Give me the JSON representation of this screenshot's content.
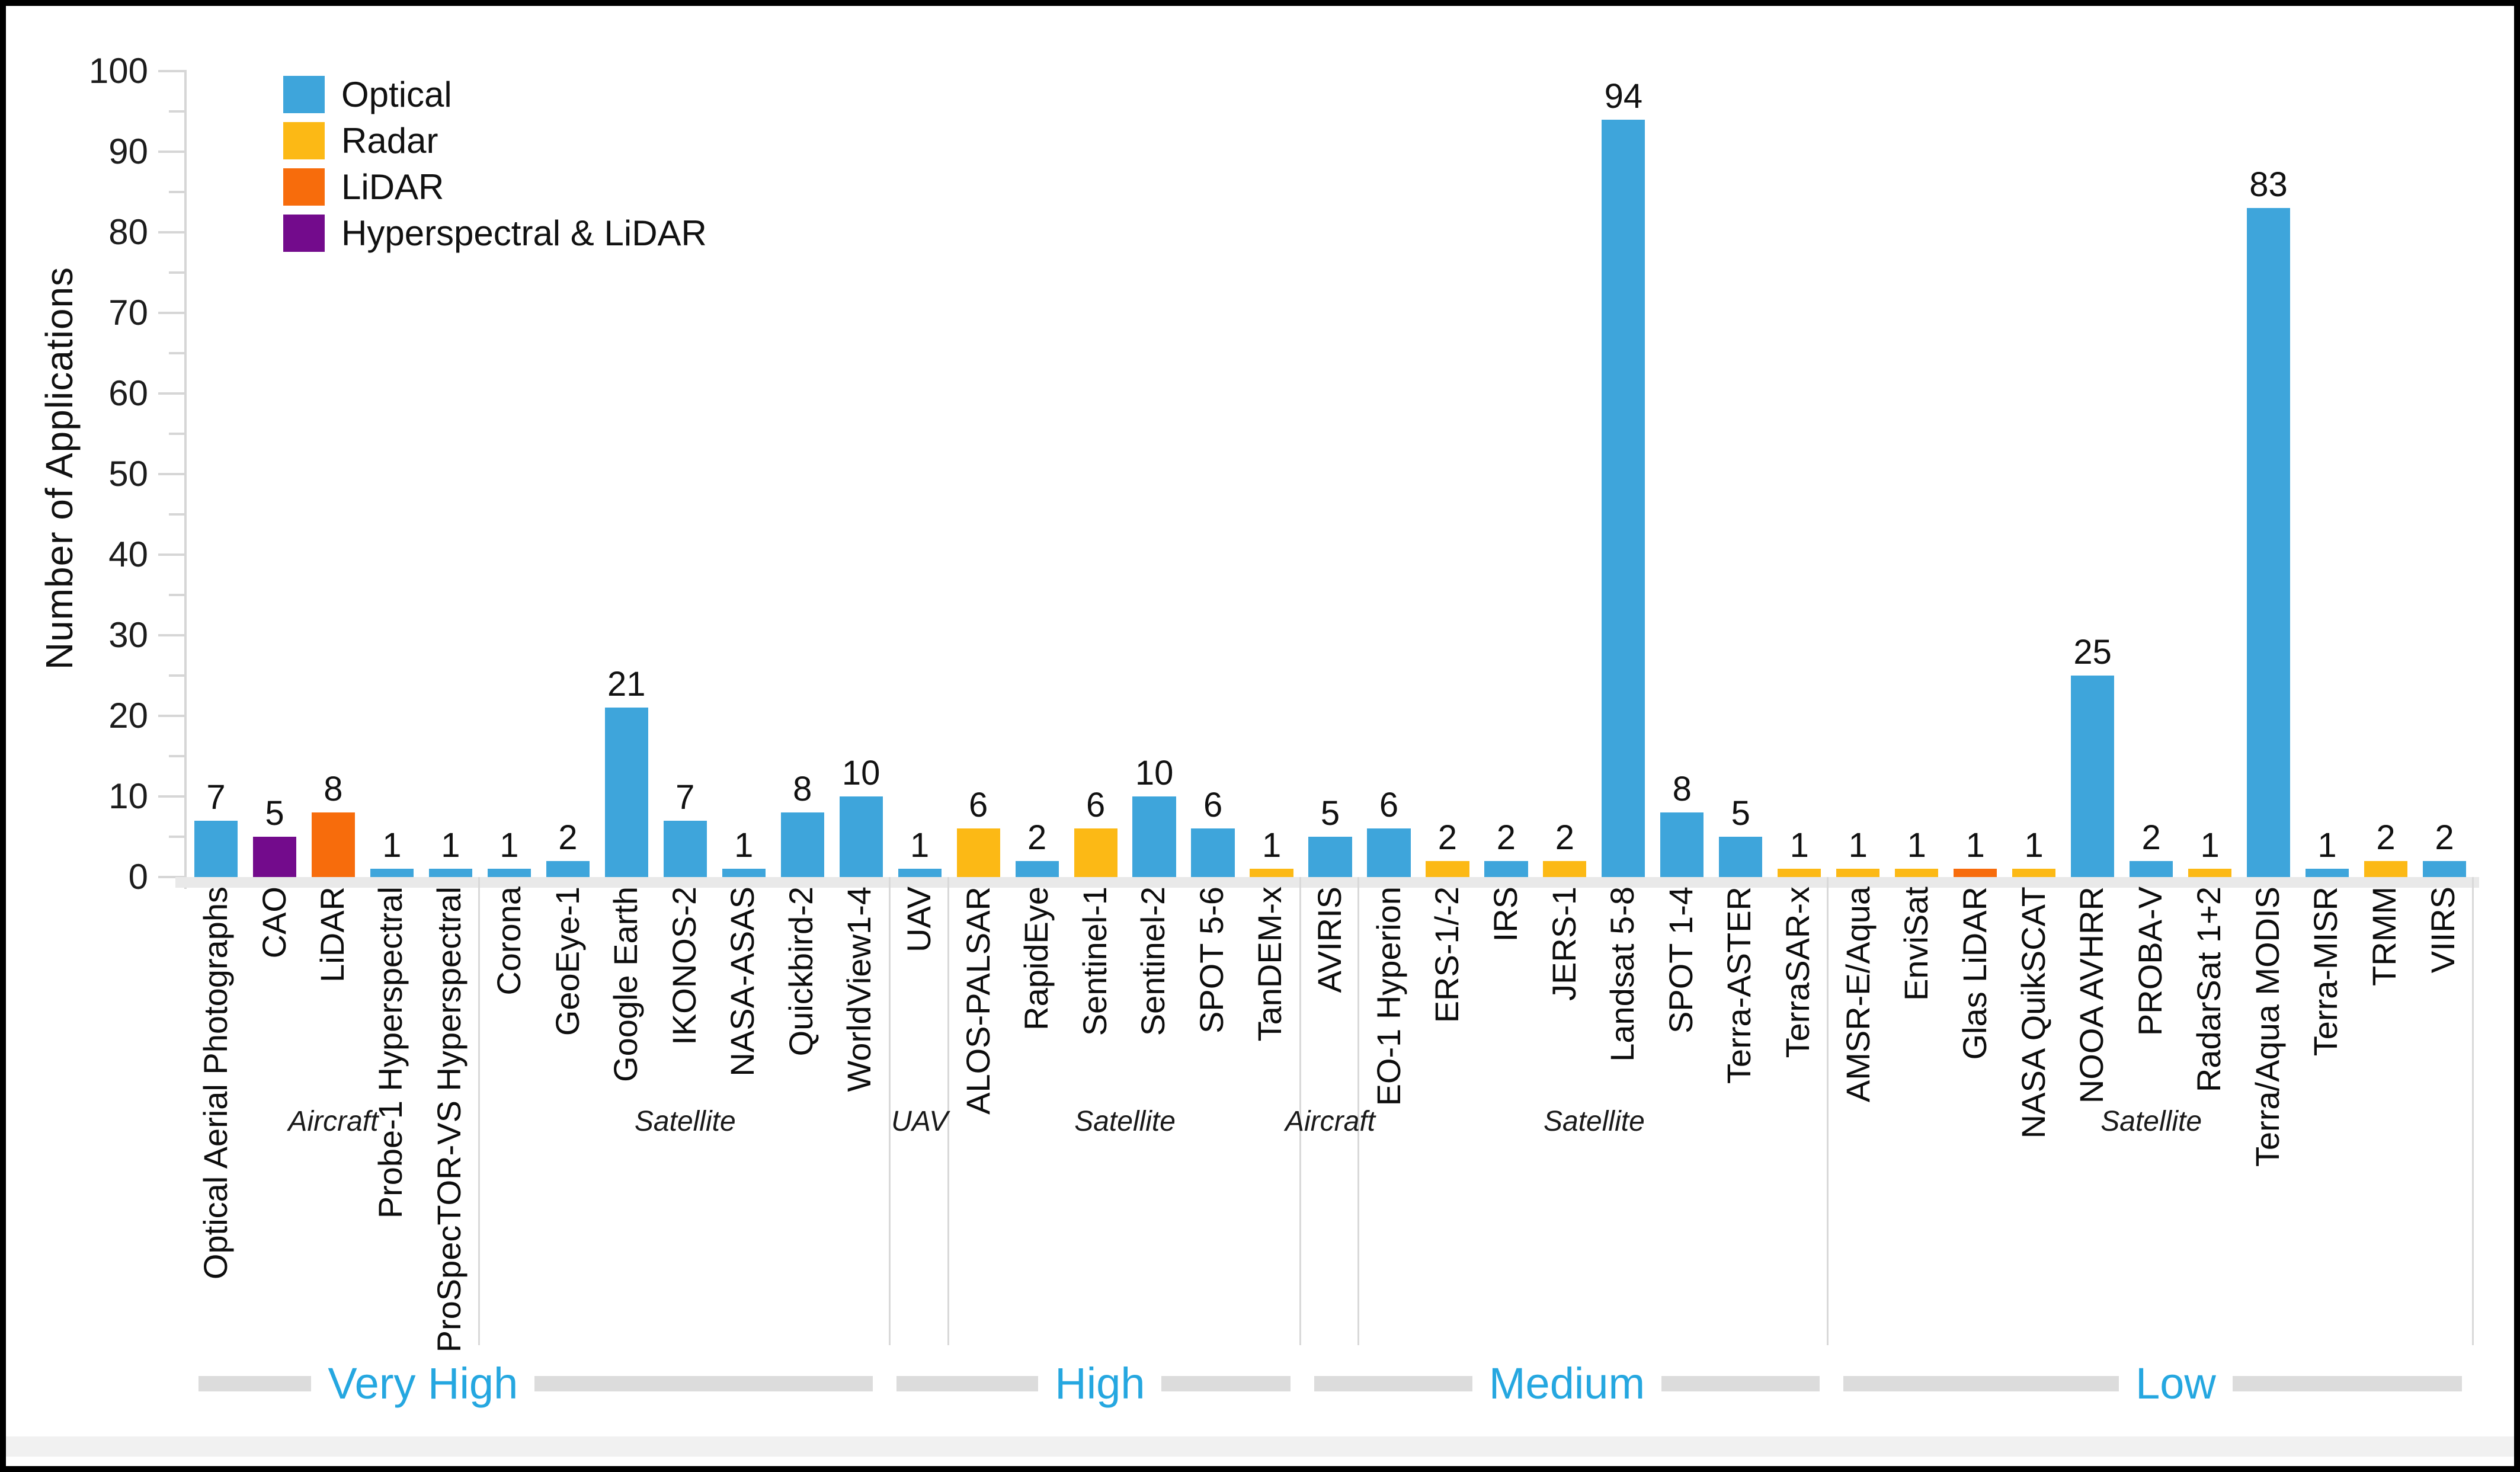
{
  "chart_data": {
    "type": "bar",
    "title": "",
    "ylabel": "Number of Applications",
    "xlabel": "",
    "ylim": [
      0,
      100
    ],
    "ytick_major_step": 10,
    "ytick_minor_step": 5,
    "yticks": [
      0,
      10,
      20,
      30,
      40,
      50,
      60,
      70,
      80,
      90,
      100
    ],
    "grid": false,
    "value_labels_shown": true,
    "legend_position": "top-left",
    "legend": [
      {
        "key": "optical",
        "label": "Optical",
        "color": "#3EA5DB"
      },
      {
        "key": "radar",
        "label": "Radar",
        "color": "#FCB915"
      },
      {
        "key": "lidar",
        "label": "LiDAR",
        "color": "#F76C0C"
      },
      {
        "key": "hyperspectral_lidar",
        "label": "Hyperspectral & LiDAR",
        "color": "#730B8C"
      }
    ],
    "groups": [
      {
        "resolution": "Very High",
        "platforms": [
          {
            "platform": "Aircraft",
            "bars": [
              {
                "label": "Optical Aerial Photographs",
                "value": 7,
                "sensor": "optical"
              },
              {
                "label": "CAO",
                "value": 5,
                "sensor": "hyperspectral_lidar"
              },
              {
                "label": "LiDAR",
                "value": 8,
                "sensor": "lidar"
              },
              {
                "label": "Probe-1 Hyperspectral",
                "value": 1,
                "sensor": "optical"
              },
              {
                "label": "ProSpecTOR-VS Hyperspectral",
                "value": 1,
                "sensor": "optical"
              }
            ]
          },
          {
            "platform": "Satellite",
            "bars": [
              {
                "label": "Corona",
                "value": 1,
                "sensor": "optical"
              },
              {
                "label": "GeoEye-1",
                "value": 2,
                "sensor": "optical"
              },
              {
                "label": "Google Earth",
                "value": 21,
                "sensor": "optical"
              },
              {
                "label": "IKONOS-2",
                "value": 7,
                "sensor": "optical"
              },
              {
                "label": "NASA-ASAS",
                "value": 1,
                "sensor": "optical"
              },
              {
                "label": "Quickbird-2",
                "value": 8,
                "sensor": "optical"
              },
              {
                "label": "WorldView1-4",
                "value": 10,
                "sensor": "optical"
              }
            ]
          }
        ]
      },
      {
        "resolution": "High",
        "platforms": [
          {
            "platform": "UAV",
            "bars": [
              {
                "label": "UAV",
                "value": 1,
                "sensor": "optical"
              }
            ]
          },
          {
            "platform": "Satellite",
            "bars": [
              {
                "label": "ALOS-PALSAR",
                "value": 6,
                "sensor": "radar"
              },
              {
                "label": "RapidEye",
                "value": 2,
                "sensor": "optical"
              },
              {
                "label": "Sentinel-1",
                "value": 6,
                "sensor": "radar"
              },
              {
                "label": "Sentinel-2",
                "value": 10,
                "sensor": "optical"
              },
              {
                "label": "SPOT 5-6",
                "value": 6,
                "sensor": "optical"
              },
              {
                "label": "TanDEM-x",
                "value": 1,
                "sensor": "radar"
              }
            ]
          }
        ]
      },
      {
        "resolution": "Medium",
        "platforms": [
          {
            "platform": "Aircraft",
            "bars": [
              {
                "label": "AVIRIS",
                "value": 5,
                "sensor": "optical"
              }
            ]
          },
          {
            "platform": "Satellite",
            "bars": [
              {
                "label": "EO-1 Hyperion",
                "value": 6,
                "sensor": "optical"
              },
              {
                "label": "ERS-1/-2",
                "value": 2,
                "sensor": "radar"
              },
              {
                "label": "IRS",
                "value": 2,
                "sensor": "optical"
              },
              {
                "label": "JERS-1",
                "value": 2,
                "sensor": "radar"
              },
              {
                "label": "Landsat 5-8",
                "value": 94,
                "sensor": "optical"
              },
              {
                "label": "SPOT 1-4",
                "value": 8,
                "sensor": "optical"
              },
              {
                "label": "Terra-ASTER",
                "value": 5,
                "sensor": "optical"
              },
              {
                "label": "TerraSAR-x",
                "value": 1,
                "sensor": "radar"
              }
            ]
          }
        ]
      },
      {
        "resolution": "Low",
        "platforms": [
          {
            "platform": "Satellite",
            "bars": [
              {
                "label": "AMSR-E/Aqua",
                "value": 1,
                "sensor": "radar"
              },
              {
                "label": "EnviSat",
                "value": 1,
                "sensor": "radar"
              },
              {
                "label": "Glas LiDAR",
                "value": 1,
                "sensor": "lidar"
              },
              {
                "label": "NASA QuikSCAT",
                "value": 1,
                "sensor": "radar"
              },
              {
                "label": "NOOA AVHRR",
                "value": 25,
                "sensor": "optical"
              },
              {
                "label": "PROBA-V",
                "value": 2,
                "sensor": "optical"
              },
              {
                "label": "RadarSat 1+2",
                "value": 1,
                "sensor": "radar"
              },
              {
                "label": "Terra/Aqua MODIS",
                "value": 83,
                "sensor": "optical"
              },
              {
                "label": "Terra-MISR",
                "value": 1,
                "sensor": "optical"
              },
              {
                "label": "TRMM",
                "value": 2,
                "sensor": "radar"
              },
              {
                "label": "VIIRS",
                "value": 2,
                "sensor": "optical"
              }
            ]
          }
        ]
      }
    ]
  },
  "colors": {
    "optical": "#3EA5DB",
    "radar": "#FCB915",
    "lidar": "#F76C0C",
    "hyperspectral_lidar": "#730B8C",
    "resolution_label": "#25A7E0",
    "axis_gray": "#D6D6D6",
    "separator_gray": "#D9D9D9",
    "baseline_gray": "#E9E9E9",
    "text_black": "#111111",
    "figure_border": "#000000"
  }
}
